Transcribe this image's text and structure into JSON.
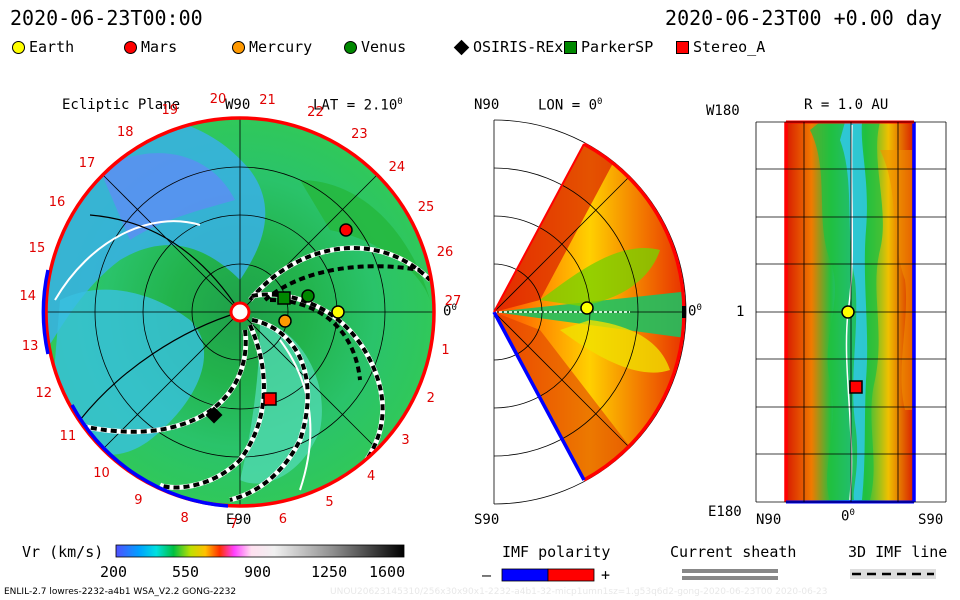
{
  "header": {
    "datetime_left": "2020-06-23T00:00",
    "datetime_right": "2020-06-23T00 +0.00 day"
  },
  "legend": [
    {
      "label": "Earth",
      "shape": "dot",
      "color": "#ffff00"
    },
    {
      "label": "Mars",
      "shape": "dot",
      "color": "#ff0000"
    },
    {
      "label": "Mercury",
      "shape": "dot",
      "color": "#ff9900"
    },
    {
      "label": "Venus",
      "shape": "dot",
      "color": "#008800"
    },
    {
      "label": "OSIRIS-REx",
      "shape": "diamond",
      "color": "#000000"
    },
    {
      "label": "ParkerSP",
      "shape": "square",
      "color": "#008800"
    },
    {
      "label": "Stereo_A",
      "shape": "square",
      "color": "#ff0000"
    }
  ],
  "ecliptic": {
    "title": "Ecliptic Plane",
    "w_label": "W90",
    "lat_label": "LAT = 2.10",
    "lat_deg": "0",
    "zero_label": "0",
    "zero_deg": "0",
    "bottom_label": "E90",
    "carrington": [
      "20",
      "21",
      "22",
      "23",
      "24",
      "25",
      "26",
      "27",
      "1",
      "2",
      "3",
      "4",
      "5",
      "6",
      "7",
      "8",
      "9",
      "10",
      "11",
      "12",
      "13",
      "14",
      "15",
      "16",
      "17",
      "18",
      "19"
    ]
  },
  "meridional": {
    "n_label": "N90",
    "lon_label": "LON = 0",
    "lon_deg": "0",
    "zero_label": "0",
    "zero_deg": "0",
    "s_label": "S90"
  },
  "radial": {
    "r_label": "R = 1.0 AU",
    "top_label": "W180",
    "mid_label": "1",
    "bottom_label": "E180",
    "x_left": "N90",
    "x_mid": "0",
    "x_mid_deg": "0",
    "x_right": "S90"
  },
  "colorbar": {
    "title": "Vr (km/s)",
    "ticks": [
      "200",
      "550",
      "900",
      "1250",
      "1600"
    ]
  },
  "imf_polarity": {
    "title": "IMF polarity",
    "minus": "–",
    "plus": "+",
    "colors": [
      "#0000ff",
      "#ff0000"
    ]
  },
  "current_sheath": {
    "title": "Current sheath"
  },
  "imf_line": {
    "title": "3D IMF line"
  },
  "footer": {
    "left": "ENLIL-2.7 lowres-2232-a4b1 WSA_V2.2 GONG-2232",
    "watermark": "UNOU20623145310/256x30x90x1-2232-a4b1-32-micp1umn1sz=1.g53q6d2-gong-2020-06-23T00 2020-06-23"
  }
}
